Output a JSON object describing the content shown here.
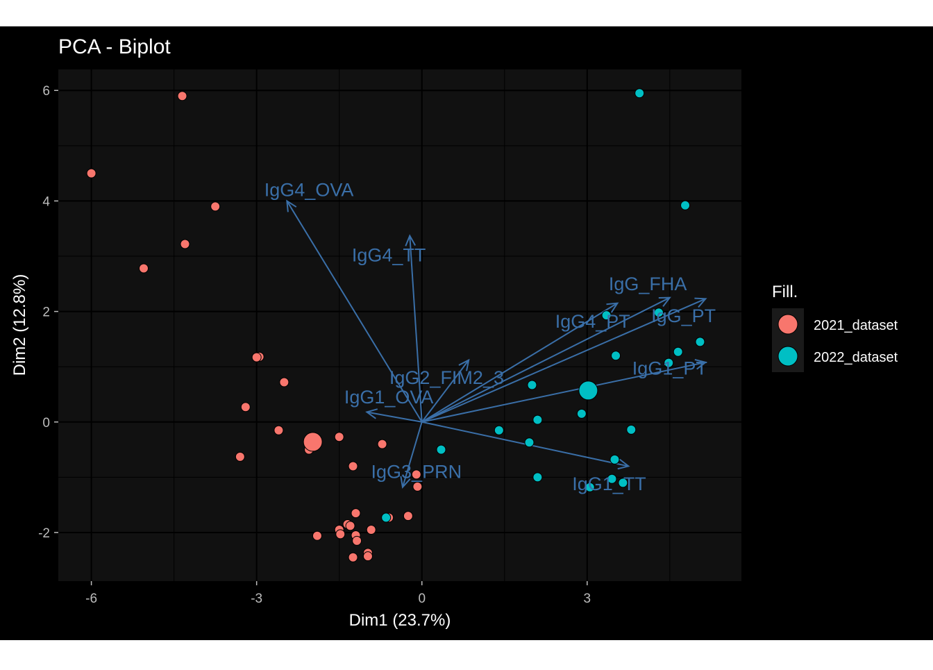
{
  "chart_data": {
    "type": "scatter",
    "title": "PCA - Biplot",
    "xlabel": "Dim1 (23.7%)",
    "ylabel": "Dim2 (12.8%)",
    "xlim": [
      -6.6,
      5.8
    ],
    "ylim": [
      -2.88,
      6.38
    ],
    "x_ticks": [
      -6,
      -3,
      0,
      3
    ],
    "y_ticks": [
      -2,
      0,
      2,
      4,
      6
    ],
    "grid": true,
    "legend": {
      "title": "Fill.",
      "position": "right",
      "entries": [
        {
          "name": "2021_dataset",
          "color": "#F8766D"
        },
        {
          "name": "2022_dataset",
          "color": "#00BFC4"
        }
      ]
    },
    "arrow_color": "#3A6FA8",
    "colors": {
      "figure_background": "#000000",
      "panel_background": "#111111",
      "grid": "#000000",
      "axis_text": "#BDBDBD",
      "title_text": "#FFFFFF"
    },
    "series": [
      {
        "name": "2021_dataset",
        "color": "#F8766D",
        "points": [
          [
            -6.0,
            4.5
          ],
          [
            -4.35,
            5.9
          ],
          [
            -3.75,
            3.9
          ],
          [
            -4.3,
            3.22
          ],
          [
            -5.05,
            2.78
          ],
          [
            -2.95,
            1.18
          ],
          [
            -3.0,
            1.17
          ],
          [
            -2.5,
            0.72
          ],
          [
            -3.2,
            0.27
          ],
          [
            -2.6,
            -0.15
          ],
          [
            -3.3,
            -0.63
          ],
          [
            -2.05,
            -0.5
          ],
          [
            -1.5,
            -0.27
          ],
          [
            -0.72,
            -0.4
          ],
          [
            -1.25,
            -0.8
          ],
          [
            -0.1,
            -0.95
          ],
          [
            -0.08,
            -1.17
          ],
          [
            -1.2,
            -1.65
          ],
          [
            -0.6,
            -1.73
          ],
          [
            -0.25,
            -1.7
          ],
          [
            -1.35,
            -1.85
          ],
          [
            -1.3,
            -1.88
          ],
          [
            -1.5,
            -1.95
          ],
          [
            -1.2,
            -2.05
          ],
          [
            -0.92,
            -1.95
          ],
          [
            -1.48,
            -2.03
          ],
          [
            -1.9,
            -2.06
          ],
          [
            -1.18,
            -2.15
          ],
          [
            -0.98,
            -2.37
          ],
          [
            -0.98,
            -2.43
          ],
          [
            -1.25,
            -2.45
          ]
        ],
        "centroid": [
          -1.98,
          -0.36
        ]
      },
      {
        "name": "2022_dataset",
        "color": "#00BFC4",
        "points": [
          [
            3.95,
            5.95
          ],
          [
            4.78,
            3.92
          ],
          [
            3.35,
            1.93
          ],
          [
            4.3,
            1.98
          ],
          [
            5.05,
            1.45
          ],
          [
            4.65,
            1.27
          ],
          [
            3.52,
            1.2
          ],
          [
            4.48,
            1.07
          ],
          [
            2.0,
            0.67
          ],
          [
            2.1,
            0.04
          ],
          [
            2.9,
            0.15
          ],
          [
            1.95,
            -0.37
          ],
          [
            1.4,
            -0.15
          ],
          [
            3.8,
            -0.14
          ],
          [
            0.35,
            -0.5
          ],
          [
            3.5,
            -0.68
          ],
          [
            3.45,
            -1.03
          ],
          [
            3.65,
            -1.1
          ],
          [
            2.1,
            -1.0
          ],
          [
            3.05,
            -1.18
          ],
          [
            -0.65,
            -1.73
          ]
        ],
        "centroid": [
          3.02,
          0.57
        ]
      }
    ],
    "loadings": [
      {
        "label": "IgG4_OVA",
        "x": -2.45,
        "y": 4.0
      },
      {
        "label": "IgG4_TT",
        "x": -0.22,
        "y": 3.37
      },
      {
        "label": "IgG_FHA",
        "x": 4.5,
        "y": 2.25
      },
      {
        "label": "IgG_PT",
        "x": 5.15,
        "y": 2.23
      },
      {
        "label": "IgG4_PT",
        "x": 3.55,
        "y": 2.15
      },
      {
        "label": "IgG1_PT",
        "x": 5.15,
        "y": 1.08
      },
      {
        "label": "IgG2_FIM2_3",
        "x": 0.85,
        "y": 1.12
      },
      {
        "label": "IgG1_OVA",
        "x": -1.0,
        "y": 0.18
      },
      {
        "label": "IgG3_PRN",
        "x": -0.35,
        "y": -1.18
      },
      {
        "label": "IgG1_TT",
        "x": 3.75,
        "y": -0.8
      }
    ],
    "loading_labels": [
      {
        "label": "IgG4_OVA",
        "x": -2.05,
        "y": 4.2
      },
      {
        "label": "IgG4_TT",
        "x": -0.6,
        "y": 3.02
      },
      {
        "label": "IgG_FHA",
        "x": 4.1,
        "y": 2.5
      },
      {
        "label": "IgG_PT",
        "x": 4.75,
        "y": 1.92
      },
      {
        "label": "IgG4_PT",
        "x": 3.1,
        "y": 1.82
      },
      {
        "label": "IgG1_PT",
        "x": 4.5,
        "y": 0.97
      },
      {
        "label": "IgG2_FIM2_3",
        "x": 0.45,
        "y": 0.8
      },
      {
        "label": "IgG1_OVA",
        "x": -0.6,
        "y": 0.45
      },
      {
        "label": "IgG3_PRN",
        "x": -0.1,
        "y": -0.9
      },
      {
        "label": "IgG1_TT",
        "x": 3.4,
        "y": -1.12
      }
    ]
  }
}
